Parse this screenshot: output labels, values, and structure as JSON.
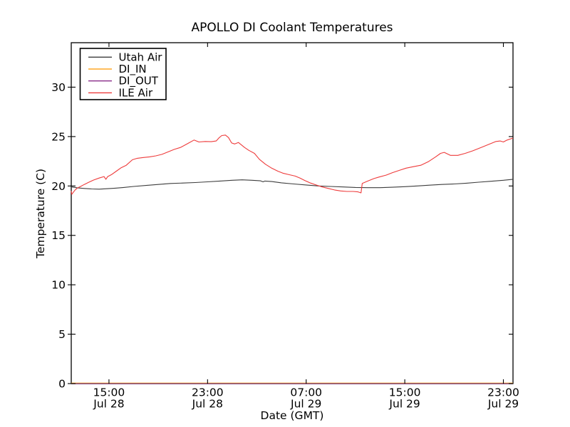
{
  "chart_data": {
    "type": "line",
    "title": "APOLLO DI Coolant Temperatures",
    "xlabel": "Date (GMT)",
    "ylabel": "Temperature (C)",
    "grid": false,
    "legend_position": "upper-left",
    "x_axis": {
      "unit": "hours since Jul 28 00:00 GMT",
      "range": [
        11.94,
        47.78
      ],
      "ticks": [
        {
          "value": 15,
          "time": "15:00",
          "date": "Jul 28"
        },
        {
          "value": 23,
          "time": "23:00",
          "date": "Jul 28"
        },
        {
          "value": 31,
          "time": "07:00",
          "date": "Jul 29"
        },
        {
          "value": 39,
          "time": "15:00",
          "date": "Jul 29"
        },
        {
          "value": 47,
          "time": "23:00",
          "date": "Jul 29"
        }
      ]
    },
    "y_axis": {
      "range": [
        0,
        34.5
      ],
      "ticks": [
        0,
        5,
        10,
        15,
        20,
        25,
        30
      ]
    },
    "legend": {
      "entries": [
        "Utah Air",
        "DI_IN",
        "DI_OUT",
        "ILE Air"
      ]
    },
    "series": [
      {
        "name": "Utah Air",
        "color": "#3d3d3d",
        "points": [
          [
            11.94,
            19.9
          ],
          [
            12.5,
            19.8
          ],
          [
            13.0,
            19.75
          ],
          [
            13.6,
            19.7
          ],
          [
            14.2,
            19.68
          ],
          [
            14.8,
            19.72
          ],
          [
            15.5,
            19.78
          ],
          [
            16.2,
            19.85
          ],
          [
            17.0,
            19.95
          ],
          [
            18.0,
            20.05
          ],
          [
            19.0,
            20.15
          ],
          [
            20.0,
            20.25
          ],
          [
            21.0,
            20.3
          ],
          [
            22.0,
            20.35
          ],
          [
            23.0,
            20.42
          ],
          [
            24.0,
            20.5
          ],
          [
            25.0,
            20.58
          ],
          [
            25.8,
            20.62
          ],
          [
            26.6,
            20.58
          ],
          [
            27.3,
            20.52
          ],
          [
            27.5,
            20.42
          ],
          [
            27.65,
            20.5
          ],
          [
            28.2,
            20.45
          ],
          [
            29.0,
            20.32
          ],
          [
            30.0,
            20.2
          ],
          [
            31.0,
            20.1
          ],
          [
            32.0,
            20.0
          ],
          [
            33.0,
            19.95
          ],
          [
            34.0,
            19.9
          ],
          [
            35.0,
            19.85
          ],
          [
            36.0,
            19.83
          ],
          [
            37.0,
            19.83
          ],
          [
            38.0,
            19.87
          ],
          [
            39.0,
            19.93
          ],
          [
            40.0,
            20.0
          ],
          [
            41.0,
            20.08
          ],
          [
            42.0,
            20.15
          ],
          [
            43.0,
            20.2
          ],
          [
            44.0,
            20.28
          ],
          [
            45.0,
            20.38
          ],
          [
            46.0,
            20.48
          ],
          [
            47.0,
            20.58
          ],
          [
            47.78,
            20.68
          ]
        ]
      },
      {
        "name": "DI_IN",
        "color": "#ffa726",
        "points": [
          [
            11.94,
            0
          ],
          [
            47.78,
            0
          ]
        ]
      },
      {
        "name": "DI_OUT",
        "color": "#8a2d8a",
        "points": [
          [
            11.94,
            0
          ],
          [
            47.78,
            0
          ]
        ]
      },
      {
        "name": "ILE Air",
        "color": "#ee3b3b",
        "points": [
          [
            11.94,
            19.5
          ],
          [
            11.98,
            19.15
          ],
          [
            12.1,
            19.35
          ],
          [
            12.25,
            19.6
          ],
          [
            12.45,
            19.8
          ],
          [
            12.7,
            19.95
          ],
          [
            13.0,
            20.15
          ],
          [
            13.4,
            20.4
          ],
          [
            13.75,
            20.6
          ],
          [
            14.2,
            20.8
          ],
          [
            14.6,
            20.95
          ],
          [
            14.75,
            20.68
          ],
          [
            14.9,
            20.95
          ],
          [
            15.2,
            21.15
          ],
          [
            15.6,
            21.5
          ],
          [
            16.0,
            21.85
          ],
          [
            16.4,
            22.1
          ],
          [
            16.9,
            22.65
          ],
          [
            17.3,
            22.8
          ],
          [
            17.8,
            22.88
          ],
          [
            18.3,
            22.95
          ],
          [
            18.8,
            23.05
          ],
          [
            19.3,
            23.2
          ],
          [
            19.8,
            23.45
          ],
          [
            20.3,
            23.7
          ],
          [
            20.8,
            23.9
          ],
          [
            21.4,
            24.3
          ],
          [
            21.9,
            24.65
          ],
          [
            22.3,
            24.45
          ],
          [
            22.8,
            24.5
          ],
          [
            23.3,
            24.48
          ],
          [
            23.7,
            24.55
          ],
          [
            23.95,
            24.9
          ],
          [
            24.15,
            25.1
          ],
          [
            24.45,
            25.15
          ],
          [
            24.7,
            24.9
          ],
          [
            24.95,
            24.35
          ],
          [
            25.2,
            24.25
          ],
          [
            25.5,
            24.4
          ],
          [
            25.75,
            24.15
          ],
          [
            26.0,
            23.9
          ],
          [
            26.35,
            23.6
          ],
          [
            26.8,
            23.3
          ],
          [
            27.2,
            22.7
          ],
          [
            27.7,
            22.2
          ],
          [
            28.2,
            21.8
          ],
          [
            28.7,
            21.5
          ],
          [
            29.1,
            21.3
          ],
          [
            29.6,
            21.15
          ],
          [
            30.1,
            21.0
          ],
          [
            30.5,
            20.8
          ],
          [
            30.9,
            20.55
          ],
          [
            31.35,
            20.3
          ],
          [
            31.8,
            20.1
          ],
          [
            32.3,
            19.9
          ],
          [
            32.8,
            19.75
          ],
          [
            33.3,
            19.6
          ],
          [
            33.8,
            19.5
          ],
          [
            34.3,
            19.45
          ],
          [
            34.8,
            19.45
          ],
          [
            35.2,
            19.4
          ],
          [
            35.45,
            19.3
          ],
          [
            35.55,
            20.25
          ],
          [
            36.0,
            20.5
          ],
          [
            36.5,
            20.75
          ],
          [
            36.9,
            20.9
          ],
          [
            37.5,
            21.1
          ],
          [
            38.0,
            21.35
          ],
          [
            38.6,
            21.6
          ],
          [
            39.1,
            21.8
          ],
          [
            39.7,
            21.95
          ],
          [
            40.3,
            22.1
          ],
          [
            40.9,
            22.45
          ],
          [
            41.5,
            22.95
          ],
          [
            41.9,
            23.3
          ],
          [
            42.2,
            23.4
          ],
          [
            42.7,
            23.1
          ],
          [
            43.3,
            23.1
          ],
          [
            43.9,
            23.3
          ],
          [
            44.5,
            23.55
          ],
          [
            45.3,
            23.95
          ],
          [
            45.9,
            24.25
          ],
          [
            46.4,
            24.5
          ],
          [
            46.75,
            24.55
          ],
          [
            47.0,
            24.45
          ],
          [
            47.3,
            24.65
          ],
          [
            47.78,
            24.85
          ]
        ]
      }
    ]
  }
}
